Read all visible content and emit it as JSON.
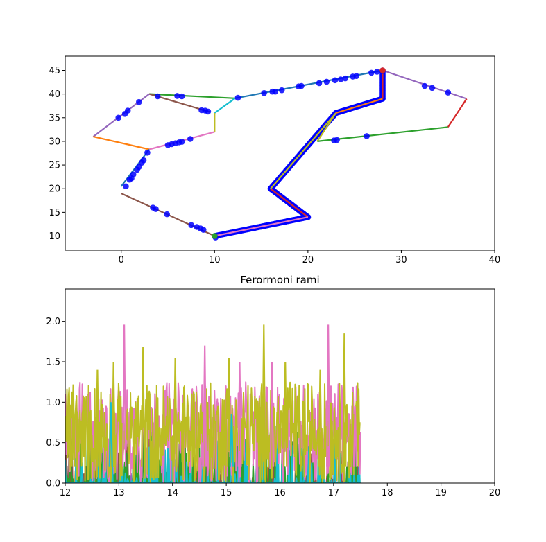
{
  "chart_data": [
    {
      "type": "line",
      "title": "",
      "xlabel": "",
      "ylabel": "",
      "xlim": [
        -6,
        40
      ],
      "ylim": [
        7,
        48
      ],
      "xticks": [
        "0",
        "10",
        "20",
        "30",
        "40"
      ],
      "yticks": [
        "10",
        "15",
        "20",
        "25",
        "30",
        "35",
        "40",
        "45"
      ],
      "grid": false,
      "legend": "none",
      "series": [
        {
          "color": "#2ca02c",
          "values": [
            [
              3,
              40
            ],
            [
              12.2,
              39.1
            ]
          ]
        },
        {
          "color": "#8c564b",
          "values": [
            [
              3,
              40
            ],
            [
              9.5,
              36.2
            ]
          ]
        },
        {
          "color": "#17becf",
          "values": [
            [
              10,
              36
            ],
            [
              12.2,
              39.1
            ]
          ]
        },
        {
          "color": "#bcbd22",
          "values": [
            [
              10,
              36
            ],
            [
              10,
              32
            ]
          ]
        },
        {
          "color": "#e377c2",
          "values": [
            [
              10,
              32
            ],
            [
              3,
              28.3
            ]
          ]
        },
        {
          "color": "#9467bd",
          "values": [
            [
              3,
              40
            ],
            [
              -3,
              31
            ]
          ]
        },
        {
          "color": "#ff7f0e",
          "values": [
            [
              -3,
              31
            ],
            [
              3,
              28.3
            ]
          ]
        },
        {
          "color": "#1f77b4",
          "values": [
            [
              3,
              28.3
            ],
            [
              0,
              20.5
            ]
          ]
        },
        {
          "color": "#8c564b",
          "values": [
            [
              0,
              19
            ],
            [
              10,
              10
            ]
          ]
        },
        {
          "color": "#1f77b4",
          "values": [
            [
              12.2,
              39.1
            ],
            [
              28,
              45
            ]
          ]
        },
        {
          "color": "#9467bd",
          "values": [
            [
              28,
              45
            ],
            [
              37,
              39
            ]
          ]
        },
        {
          "color": "#d62728",
          "values": [
            [
              37,
              39
            ],
            [
              35,
              33
            ]
          ]
        },
        {
          "color": "#2ca02c",
          "values": [
            [
              35,
              33
            ],
            [
              21,
              30
            ]
          ]
        },
        {
          "color": "#bcbd22",
          "values": [
            [
              21,
              30
            ],
            [
              23,
              36
            ]
          ]
        },
        {
          "color": "#ff7f0e",
          "values": [
            [
              23,
              36
            ],
            [
              28,
              39
            ]
          ]
        },
        {
          "color": "#d62728",
          "values": [
            [
              28,
              39
            ],
            [
              28,
              45
            ]
          ]
        },
        {
          "color": "#bcbd22",
          "values": [
            [
              23,
              36
            ],
            [
              16,
              20
            ]
          ]
        },
        {
          "color": "#d62728",
          "values": [
            [
              16,
              20
            ],
            [
              20,
              14
            ]
          ]
        },
        {
          "color": "#e377c2",
          "values": [
            [
              20,
              14
            ],
            [
              10,
              10
            ]
          ]
        }
      ],
      "points": [
        [
          3.9,
          39.5
        ],
        [
          6.0,
          39.6
        ],
        [
          6.5,
          39.5
        ],
        [
          12.5,
          39.2
        ],
        [
          15.3,
          40.2
        ],
        [
          16.2,
          40.5
        ],
        [
          16.5,
          40.5
        ],
        [
          17.2,
          40.8
        ],
        [
          19.0,
          41.6
        ],
        [
          19.3,
          41.7
        ],
        [
          21.2,
          42.3
        ],
        [
          22.0,
          42.6
        ],
        [
          22.9,
          42.9
        ],
        [
          23.5,
          43.1
        ],
        [
          24.0,
          43.3
        ],
        [
          24.8,
          43.7
        ],
        [
          25.2,
          43.8
        ],
        [
          26.8,
          44.5
        ],
        [
          27.4,
          44.7
        ],
        [
          28.0,
          44.9
        ],
        [
          32.5,
          41.7
        ],
        [
          33.3,
          41.3
        ],
        [
          35.0,
          40.3
        ],
        [
          1.9,
          38.3
        ],
        [
          0.7,
          36.5
        ],
        [
          0.4,
          35.8
        ],
        [
          -0.3,
          35.0
        ],
        [
          8.6,
          36.6
        ],
        [
          9.0,
          36.5
        ],
        [
          9.3,
          36.3
        ],
        [
          7.4,
          30.5
        ],
        [
          6.5,
          29.9
        ],
        [
          6.2,
          29.8
        ],
        [
          5.8,
          29.6
        ],
        [
          5.4,
          29.4
        ],
        [
          5.0,
          29.2
        ],
        [
          2.8,
          27.6
        ],
        [
          2.4,
          26.0
        ],
        [
          2.2,
          25.5
        ],
        [
          1.9,
          24.6
        ],
        [
          1.7,
          24.0
        ],
        [
          1.3,
          23.0
        ],
        [
          1.1,
          22.2
        ],
        [
          0.9,
          21.9
        ],
        [
          0.5,
          20.5
        ],
        [
          3.4,
          16.0
        ],
        [
          3.7,
          15.7
        ],
        [
          4.9,
          14.6
        ],
        [
          7.5,
          12.3
        ],
        [
          8.1,
          11.9
        ],
        [
          8.5,
          11.6
        ],
        [
          8.8,
          11.3
        ],
        [
          10.1,
          9.7
        ],
        [
          22.8,
          30.2
        ],
        [
          23.1,
          30.3
        ],
        [
          26.3,
          31.1
        ]
      ],
      "dense_paths": [
        [
          [
            28,
            45
          ],
          [
            28,
            39
          ]
        ],
        [
          [
            28,
            39
          ],
          [
            23,
            36
          ]
        ],
        [
          [
            23,
            36
          ],
          [
            16,
            20
          ]
        ],
        [
          [
            16,
            20
          ],
          [
            20,
            14
          ]
        ],
        [
          [
            20,
            14
          ],
          [
            10,
            10
          ]
        ]
      ],
      "markers": [
        {
          "x": 28,
          "y": 45,
          "color": "#d62728"
        },
        {
          "x": 10,
          "y": 10,
          "color": "#2ca02c"
        }
      ]
    },
    {
      "type": "line",
      "title": "Ferormoni rami",
      "xlabel": "",
      "ylabel": "",
      "xlim": [
        12,
        20
      ],
      "ylim": [
        0,
        2.4
      ],
      "xticks": [
        "12",
        "13",
        "14",
        "15",
        "16",
        "17",
        "18",
        "19",
        "20"
      ],
      "yticks": [
        "0.0",
        "0.5",
        "1.0",
        "1.5",
        "2.0"
      ],
      "grid": false,
      "legend": "none",
      "x_end": 17.5,
      "series_colors": [
        "#9467bd",
        "#ff7f0e",
        "#d62728",
        "#8c564b",
        "#2ca02c",
        "#17becf",
        "#e377c2",
        "#bcbd22"
      ],
      "peaks": [
        [
          13.1,
          1.96,
          "#e377c2"
        ],
        [
          15.7,
          1.96,
          "#bcbd22"
        ],
        [
          16.9,
          1.96,
          "#e377c2"
        ],
        [
          14.6,
          1.7,
          "#e377c2"
        ],
        [
          13.45,
          1.68,
          "#bcbd22"
        ],
        [
          17.2,
          1.85,
          "#bcbd22"
        ],
        [
          15.25,
          1.5,
          "#e377c2"
        ],
        [
          15.85,
          1.5,
          "#e377c2"
        ],
        [
          12.9,
          1.5,
          "#bcbd22"
        ],
        [
          14.05,
          1.55,
          "#bcbd22"
        ],
        [
          15.05,
          1.55,
          "#bcbd22"
        ],
        [
          16.1,
          1.5,
          "#bcbd22"
        ],
        [
          12.15,
          1.22,
          "#bcbd22"
        ],
        [
          12.6,
          1.4,
          "#bcbd22"
        ],
        [
          16.75,
          1.4,
          "#bcbd22"
        ],
        [
          17.4,
          0.95,
          "#e377c2"
        ],
        [
          15.1,
          0.85,
          "#17becf"
        ],
        [
          12.85,
          1.0,
          "#17becf"
        ]
      ]
    }
  ]
}
